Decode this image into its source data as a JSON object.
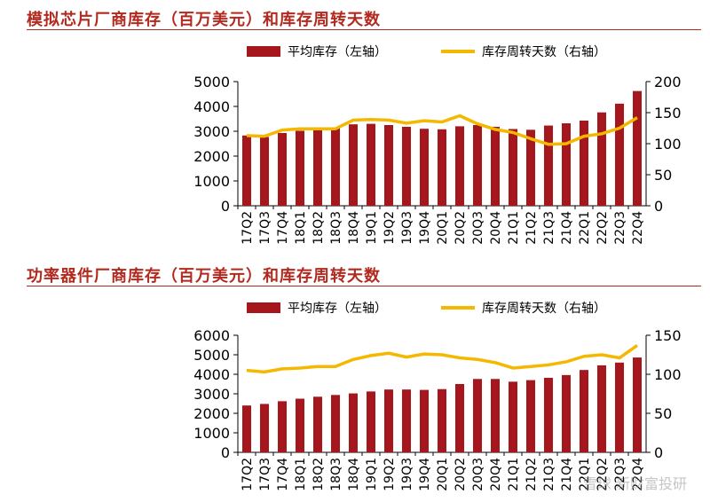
{
  "chart_data": [
    {
      "type": "bar",
      "title": "模拟芯片厂商库存（百万美元）和库存周转天数",
      "categories": [
        "17Q2",
        "17Q3",
        "17Q4",
        "18Q1",
        "18Q2",
        "18Q3",
        "18Q4",
        "19Q1",
        "19Q2",
        "19Q3",
        "19Q4",
        "20Q1",
        "20Q2",
        "20Q3",
        "20Q4",
        "21Q1",
        "21Q2",
        "21Q3",
        "21Q4",
        "22Q1",
        "22Q2",
        "22Q3",
        "22Q4"
      ],
      "series": [
        {
          "name": "平均库存（左轴）",
          "type": "bar",
          "axis": "left",
          "color": "#a5171c",
          "values": [
            2830,
            2770,
            2930,
            3020,
            3090,
            3130,
            3280,
            3300,
            3250,
            3180,
            3100,
            3080,
            3200,
            3250,
            3180,
            3090,
            3060,
            3230,
            3320,
            3430,
            3760,
            4110,
            4620
          ]
        },
        {
          "name": "库存周转天数（右轴）",
          "type": "line",
          "axis": "right",
          "color": "#f5b800",
          "values": [
            113,
            112,
            122,
            124,
            124,
            124,
            138,
            139,
            138,
            133,
            137,
            135,
            145,
            132,
            123,
            118,
            108,
            99,
            100,
            112,
            116,
            125,
            142
          ]
        }
      ],
      "y_left": {
        "min": 0,
        "max": 5000,
        "ticks": [
          0,
          1000,
          2000,
          3000,
          4000,
          5000
        ]
      },
      "y_right": {
        "min": 0,
        "max": 200,
        "ticks": [
          0,
          50,
          100,
          150,
          200
        ]
      },
      "legend": "top"
    },
    {
      "type": "bar",
      "title": "功率器件厂商库存（百万美元）和库存周转天数",
      "categories": [
        "17Q2",
        "17Q3",
        "17Q4",
        "18Q1",
        "18Q2",
        "18Q3",
        "18Q4",
        "19Q1",
        "19Q2",
        "19Q3",
        "19Q4",
        "20Q1",
        "20Q2",
        "20Q3",
        "20Q4",
        "21Q1",
        "21Q2",
        "21Q3",
        "21Q4",
        "22Q1",
        "22Q2",
        "22Q3",
        "22Q4"
      ],
      "series": [
        {
          "name": "平均库存（左轴）",
          "type": "bar",
          "axis": "left",
          "color": "#a5171c",
          "values": [
            2400,
            2480,
            2620,
            2750,
            2850,
            2940,
            3020,
            3120,
            3220,
            3220,
            3200,
            3240,
            3500,
            3760,
            3760,
            3620,
            3700,
            3820,
            3960,
            4220,
            4460,
            4600,
            4860
          ]
        },
        {
          "name": "库存周转天数（右轴）",
          "type": "line",
          "axis": "right",
          "color": "#f5b800",
          "values": [
            105,
            103,
            107,
            108,
            110,
            110,
            119,
            124,
            127,
            122,
            126,
            125,
            121,
            119,
            115,
            108,
            110,
            112,
            116,
            123,
            125,
            121,
            137
          ]
        }
      ],
      "y_left": {
        "min": 0,
        "max": 6000,
        "ticks": [
          0,
          1000,
          2000,
          3000,
          4000,
          5000,
          6000
        ]
      },
      "y_right": {
        "min": 0,
        "max": 150,
        "ticks": [
          0,
          50,
          100,
          150
        ]
      },
      "legend": "top"
    }
  ],
  "watermark": "雪球 新财富投研"
}
